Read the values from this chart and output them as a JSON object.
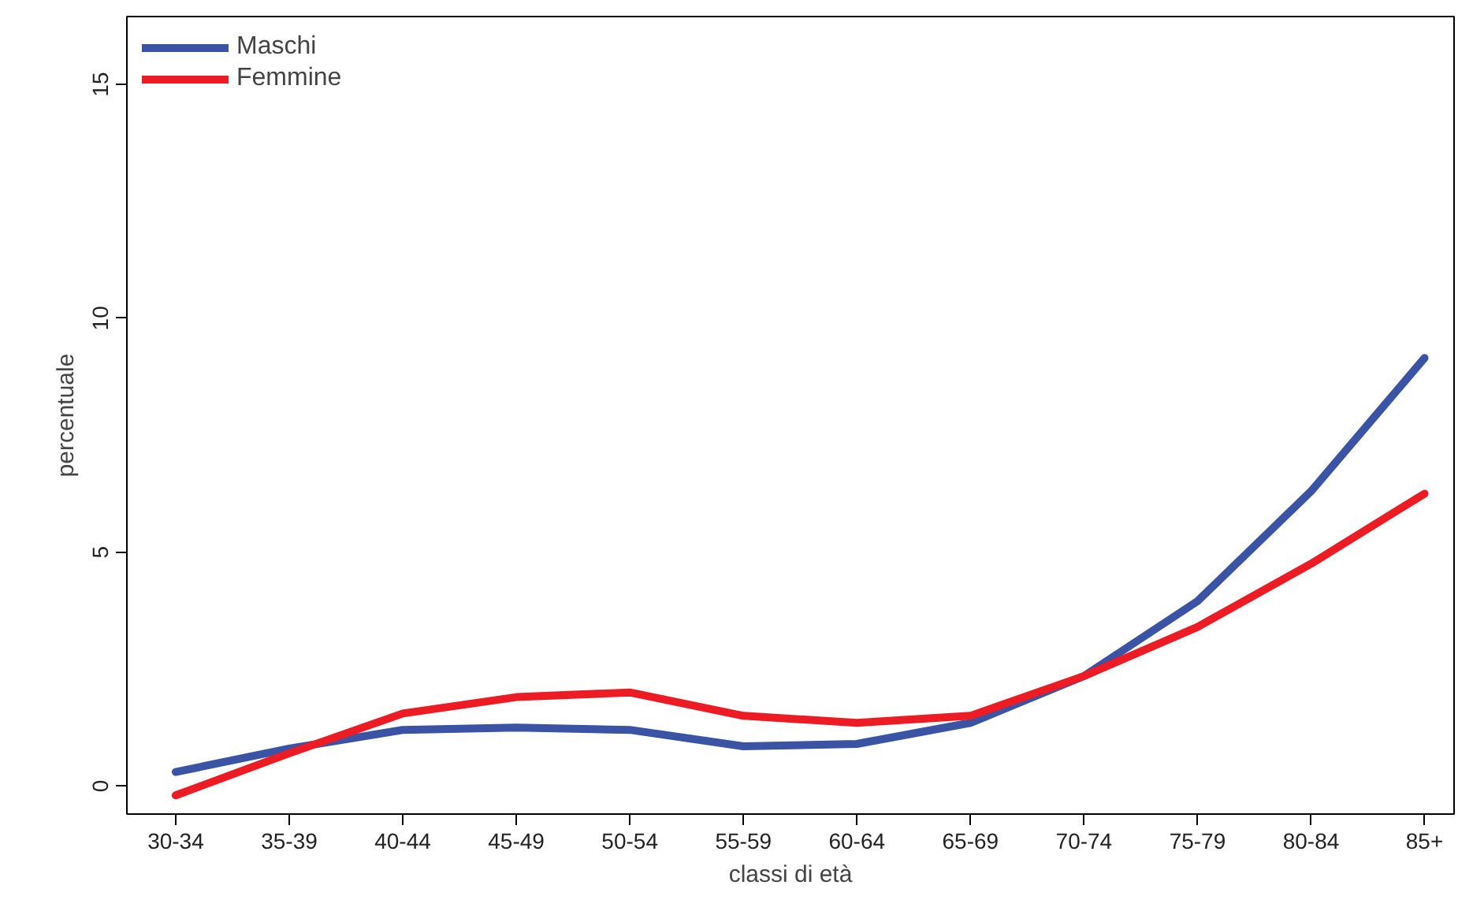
{
  "chart_data": {
    "type": "line",
    "xlabel": "classi di età",
    "ylabel": "percentuale",
    "categories": [
      "30-34",
      "35-39",
      "40-44",
      "45-49",
      "50-54",
      "55-59",
      "60-64",
      "65-69",
      "70-74",
      "75-79",
      "80-84",
      "85+"
    ],
    "series": [
      {
        "name": "Maschi",
        "color": "#3a53a4",
        "values": [
          0.3,
          0.8,
          1.2,
          1.25,
          1.2,
          0.85,
          0.9,
          1.35,
          2.35,
          3.95,
          6.3,
          9.15
        ]
      },
      {
        "name": "Femmine",
        "color": "#ed1c24",
        "values": [
          -0.2,
          0.7,
          1.55,
          1.9,
          2.0,
          1.5,
          1.35,
          1.5,
          2.35,
          3.4,
          4.75,
          6.25
        ]
      }
    ],
    "ylim": [
      -0.6,
      16.45
    ],
    "yticks": [
      0,
      5,
      10,
      15
    ],
    "grid": false,
    "legend": "top left",
    "marker": "none",
    "line_style": "solid"
  }
}
